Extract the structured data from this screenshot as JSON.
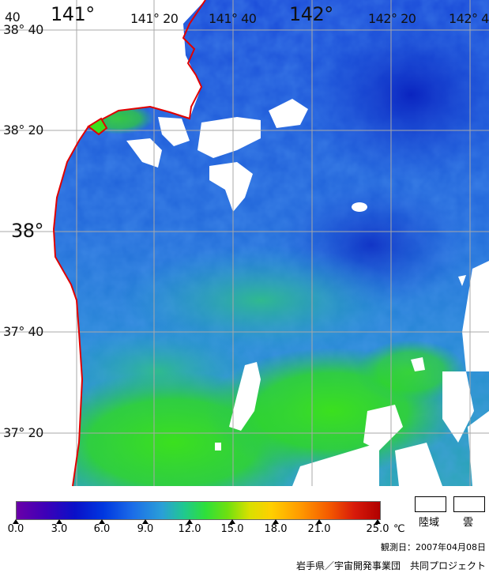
{
  "map": {
    "longitude_labels": [
      "141°",
      "141° 20",
      "141° 40",
      "142°",
      "142° 20",
      "142° 4"
    ],
    "latitude_labels": [
      "38° 40",
      "38° 20",
      "38°",
      "37° 40",
      "37° 20"
    ],
    "corner_label": "40",
    "colors": {
      "coastline": "#e00000",
      "grid": "#a8a8a8",
      "land_cloud": "#ffffff",
      "sst_warm": "#36d21c",
      "sst_mid": "#2f7fd8",
      "sst_cool": "#1235d0"
    }
  },
  "legend": {
    "ticks": [
      "0.0",
      "3.0",
      "6.0",
      "9.0",
      "12.0",
      "15.0",
      "18.0",
      "21.0",
      "25.0"
    ],
    "unit": "℃",
    "land_label": "陸域",
    "cloud_label": "雲",
    "observation_date": "観測日：2007年04月08日",
    "credit": "岩手県／宇宙開発事業団　共同プロジェクト"
  }
}
